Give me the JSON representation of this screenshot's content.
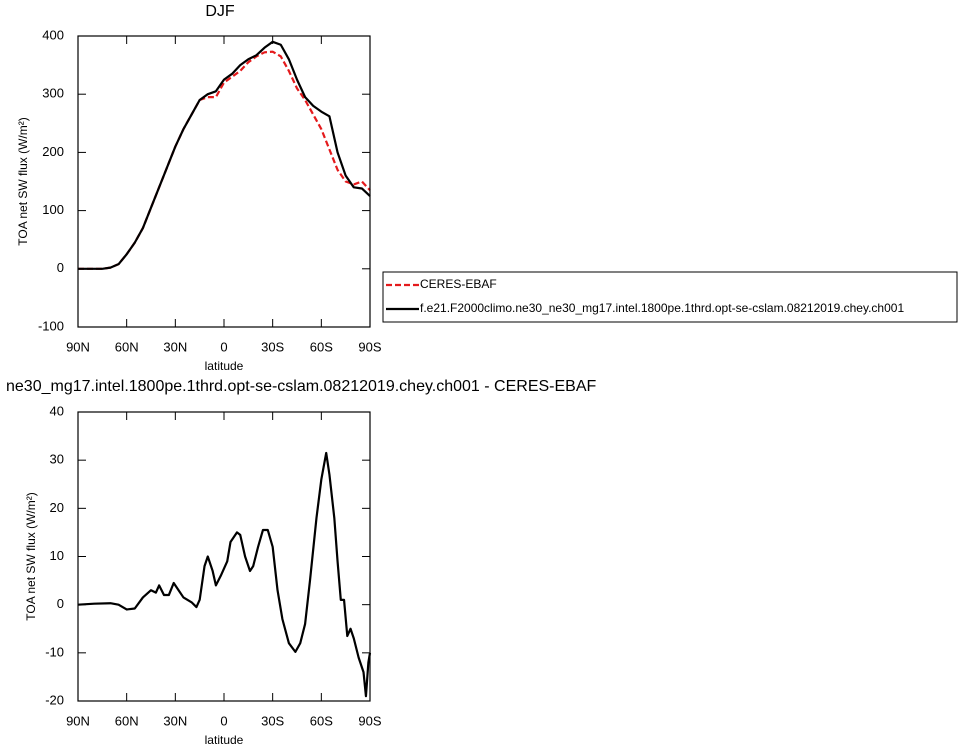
{
  "chart_data": [
    {
      "type": "line",
      "title": "DJF",
      "x_label": "latitude",
      "y_label": "TOA net SW flux (W/m²)",
      "xlim": [
        90,
        -90
      ],
      "xticks": [
        {
          "value": 90,
          "label": "90N"
        },
        {
          "value": 60,
          "label": "60N"
        },
        {
          "value": 30,
          "label": "30N"
        },
        0,
        {
          "value": -30,
          "label": "30S"
        },
        {
          "value": -60,
          "label": "60S"
        },
        {
          "value": -90,
          "label": "90S"
        }
      ],
      "ylim": [
        -100,
        400
      ],
      "yticks": [
        -100,
        0,
        100,
        200,
        300,
        400
      ],
      "legend": "outside-right",
      "x": [
        90,
        85,
        80,
        75,
        70,
        65,
        60,
        55,
        50,
        45,
        40,
        35,
        30,
        25,
        20,
        15,
        10,
        5,
        0,
        -5,
        -10,
        -15,
        -20,
        -25,
        -30,
        -35,
        -40,
        -45,
        -50,
        -55,
        -60,
        -65,
        -70,
        -75,
        -80,
        -85,
        -90
      ],
      "series": [
        {
          "name": "CERES-EBAF",
          "color": "#e41a1c",
          "dash": true,
          "values": [
            0,
            0,
            0,
            0,
            2,
            8,
            25,
            45,
            70,
            105,
            140,
            175,
            210,
            240,
            265,
            290,
            295,
            295,
            320,
            330,
            340,
            355,
            365,
            372,
            373,
            365,
            340,
            310,
            290,
            265,
            240,
            205,
            170,
            150,
            145,
            150,
            135
          ]
        },
        {
          "name": "f.e21.F2000climo.ne30_ne30_mg17.intel.1800pe.1thrd.opt-se-cslam.08212019.chey.ch001",
          "color": "#000000",
          "dash": false,
          "values": [
            0,
            0,
            0,
            0,
            2,
            8,
            25,
            45,
            70,
            105,
            140,
            175,
            210,
            240,
            265,
            290,
            300,
            305,
            325,
            335,
            350,
            360,
            367,
            380,
            390,
            385,
            360,
            325,
            295,
            280,
            270,
            262,
            200,
            160,
            140,
            138,
            125
          ]
        }
      ]
    },
    {
      "type": "line",
      "title": "ne30_mg17.intel.1800pe.1thrd.opt-se-cslam.08212019.chey.ch001 - CERES-EBAF",
      "x_label": "latitude",
      "y_label": "TOA net SW flux (W/m²)",
      "xlim": [
        90,
        -90
      ],
      "xticks": [
        {
          "value": 90,
          "label": "90N"
        },
        {
          "value": 60,
          "label": "60N"
        },
        {
          "value": 30,
          "label": "30N"
        },
        0,
        {
          "value": -30,
          "label": "30S"
        },
        {
          "value": -60,
          "label": "60S"
        },
        {
          "value": -90,
          "label": "90S"
        }
      ],
      "ylim": [
        -20,
        40
      ],
      "yticks": [
        -20,
        -10,
        0,
        10,
        20,
        30,
        40
      ],
      "x": [
        90,
        80,
        70,
        65,
        60,
        55,
        50,
        45,
        42,
        40,
        37,
        34,
        31,
        28,
        25,
        20,
        17,
        15,
        12,
        10,
        7,
        5,
        2,
        -2,
        -4,
        -8,
        -10,
        -13,
        -16,
        -18,
        -21,
        -24,
        -27,
        -30,
        -33,
        -36,
        -40,
        -44,
        -47,
        -50,
        -53,
        -57,
        -60,
        -63,
        -65,
        -68,
        -70,
        -72,
        -74,
        -76,
        -78,
        -80,
        -83,
        -86,
        -87.5,
        -89,
        -90
      ],
      "series": [
        {
          "color": "#000000",
          "dash": false,
          "values": [
            0,
            0.2,
            0.3,
            0,
            -1,
            -0.8,
            1.5,
            3,
            2.5,
            4,
            2,
            2,
            4.5,
            3,
            1.5,
            0.5,
            -0.5,
            1,
            8,
            10,
            7,
            4,
            6,
            9,
            13,
            15,
            14.5,
            10,
            7,
            8,
            12,
            15.5,
            15.5,
            12,
            3,
            -3,
            -8,
            -9.8,
            -8,
            -4,
            5,
            18,
            26,
            31.5,
            27,
            18,
            9,
            1,
            1,
            -6.5,
            -5,
            -7,
            -11,
            -14,
            -19,
            -12,
            -10
          ]
        }
      ]
    }
  ]
}
